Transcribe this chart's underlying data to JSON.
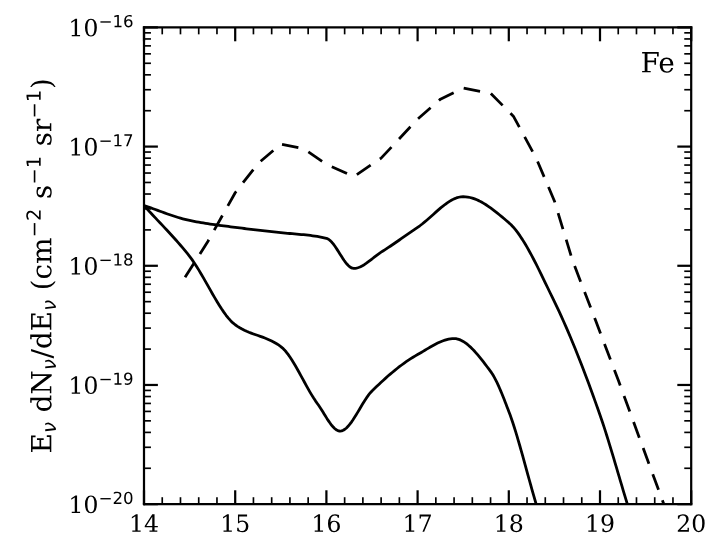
{
  "chart_data": {
    "type": "line",
    "ylabel": "E$_{ν}$ dN$_{ν}$/dE$_{ν}$ (cm$^{−2}$ s$^{−1}$ sr$^{−1}$)",
    "annotations": [
      "Fe"
    ],
    "log": "y",
    "xlim": [
      14,
      20
    ],
    "xticks": [
      14,
      15,
      16,
      17,
      18,
      19,
      20
    ],
    "ylim": [
      1e-20,
      1e-16
    ],
    "yticks": [
      {
        "value": 1e-20,
        "label": "10$^{−20}$"
      },
      {
        "value": 1e-19,
        "label": "10$^{−19}$"
      },
      {
        "value": 1e-18,
        "label": "10$^{−18}$"
      },
      {
        "value": 1e-17,
        "label": "10$^{−17}$"
      },
      {
        "value": 1e-16,
        "label": "10$^{−16}$"
      }
    ],
    "grid": false,
    "legend": false,
    "series": [
      {
        "color": "#000000",
        "line_style": "dashed",
        "x": [
          14.45,
          14.7,
          15.0,
          15.25,
          15.5,
          15.75,
          16.0,
          16.3,
          16.6,
          17.0,
          17.25,
          17.5,
          17.8,
          18.05,
          18.3,
          18.5,
          18.7,
          18.95,
          19.2,
          19.45,
          19.7
        ],
        "values": [
          8e-19,
          1.6e-18,
          4.1e-18,
          7.2e-18,
          1.05e-17,
          9.6e-18,
          7.1e-18,
          5.6e-18,
          8e-18,
          1.7e-17,
          2.5e-17,
          3.1e-17,
          2.8e-17,
          1.8e-17,
          8e-18,
          3.5e-18,
          1.1e-18,
          3.5e-19,
          1.1e-19,
          3.3e-20,
          1e-20
        ]
      },
      {
        "color": "#000000",
        "line_style": "solid",
        "x": [
          14.0,
          14.5,
          15.0,
          15.5,
          16.0,
          16.3,
          16.6,
          17.0,
          17.5,
          18.0,
          18.5,
          19.0,
          19.3
        ],
        "values": [
          3.2e-18,
          2.4e-18,
          2.1e-18,
          1.9e-18,
          1.7e-18,
          9.5e-19,
          1.3e-18,
          2.1e-18,
          3.8e-18,
          2.3e-18,
          5e-19,
          5.6e-20,
          1e-20
        ]
      },
      {
        "color": "#000000",
        "line_style": "solid",
        "x": [
          14.0,
          14.5,
          15.0,
          15.5,
          15.9,
          16.15,
          16.5,
          17.0,
          17.4,
          17.8,
          18.0,
          18.3
        ],
        "values": [
          3.2e-18,
          1.2e-18,
          3.2e-19,
          2.1e-19,
          7e-20,
          4.1e-20,
          8.9e-20,
          1.8e-19,
          2.45e-19,
          1.3e-19,
          6e-20,
          1e-20
        ]
      }
    ]
  }
}
